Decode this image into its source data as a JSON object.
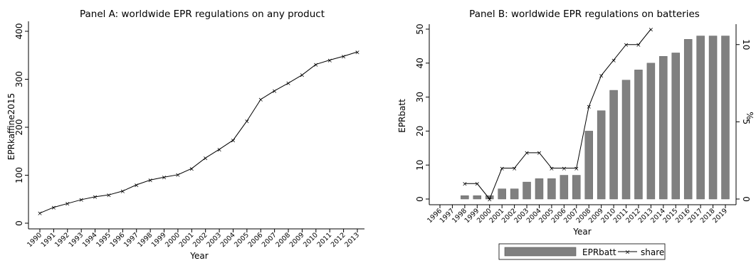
{
  "chart_data": [
    {
      "type": "line",
      "title": "Panel A: worldwide EPR regulations on any product",
      "xlabel": "Year",
      "ylabel": "EPRkaffine2015",
      "ylim": [
        0,
        400
      ],
      "yticks": [
        0,
        100,
        200,
        300,
        400
      ],
      "grid": false,
      "x": [
        "1990",
        "1991",
        "1992",
        "1993",
        "1994",
        "1995",
        "1996",
        "1997",
        "1998",
        "1999",
        "2000",
        "2001",
        "2002",
        "2003",
        "2004",
        "2005",
        "2006",
        "2007",
        "2008",
        "2009",
        "2010",
        "2011",
        "2012",
        "2013"
      ],
      "series": [
        {
          "values": [
            21,
            33,
            41,
            49,
            55,
            59,
            67,
            80,
            90,
            96,
            101,
            114,
            136,
            154,
            173,
            213,
            258,
            276,
            292,
            309,
            331,
            340,
            348,
            357
          ]
        }
      ]
    },
    {
      "type": "bar",
      "title": "Panel B: worldwide EPR regulations on batteries",
      "xlabel": "Year",
      "ylabel": "EPRbatt",
      "y2label": "%",
      "ylim": [
        0,
        50
      ],
      "yticks": [
        0,
        10,
        20,
        30,
        40,
        50
      ],
      "y2lim": [
        0,
        11
      ],
      "y2ticks": [
        0,
        5,
        10
      ],
      "grid": false,
      "legend_position": "bottom",
      "categories": [
        "1996",
        "1997",
        "1998",
        "1999",
        "2000",
        "2001",
        "2002",
        "2003",
        "2004",
        "2005",
        "2006",
        "2007",
        "2008",
        "2009",
        "2010",
        "2011",
        "2012",
        "2013",
        "2014",
        "2015",
        "2016",
        "2017",
        "2018",
        "2019"
      ],
      "series": [
        {
          "name": "EPRbatt",
          "type": "bar",
          "axis": "left",
          "values": [
            0,
            0,
            1,
            1,
            1,
            3,
            3,
            5,
            6,
            6,
            7,
            7,
            20,
            26,
            32,
            35,
            38,
            40,
            42,
            43,
            47,
            48,
            48,
            48
          ]
        },
        {
          "name": "share",
          "type": "line",
          "axis": "right",
          "values": [
            null,
            null,
            1,
            1,
            0,
            2,
            2,
            3,
            3,
            2,
            2,
            2,
            6,
            8,
            9,
            10,
            10,
            11,
            null,
            null,
            null,
            null,
            null,
            null
          ]
        }
      ],
      "colors": {
        "bar": "#808080",
        "line": "#000000"
      }
    }
  ]
}
